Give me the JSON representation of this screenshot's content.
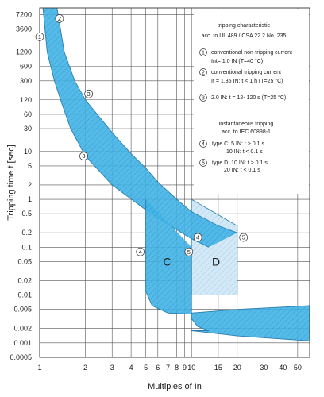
{
  "chart_data": {
    "type": "area",
    "xlabel": "Multiples of In",
    "ylabel": "Tripping time t [sec]",
    "xscale": "log",
    "yscale": "log",
    "xlim": [
      1,
      60
    ],
    "ylim": [
      0.0005,
      10000
    ],
    "x_ticks": [
      1,
      2,
      3,
      4,
      5,
      6,
      7,
      8,
      9,
      10,
      15,
      20,
      30,
      40,
      50
    ],
    "x_tick_labels": [
      "1",
      "2",
      "3",
      "4",
      "5",
      "6",
      "7",
      "8",
      "9",
      "10",
      "15",
      "20",
      "30",
      "40",
      "50"
    ],
    "y_ticks": [
      7200,
      3600,
      1200,
      600,
      300,
      120,
      60,
      30,
      10,
      5,
      2,
      1,
      0.5,
      0.2,
      0.1,
      0.05,
      0.02,
      0.01,
      0.005,
      0.002,
      0.001,
      0.0005
    ],
    "y_tick_labels": [
      "7200",
      "3600",
      "1200",
      "600",
      "300",
      "120",
      "60",
      "30",
      "10",
      "5",
      "2",
      "1",
      "0.5",
      "0.2",
      "0.1",
      "0.05",
      "0.02",
      "0.01",
      "0.005",
      "0.002",
      "0.001",
      "0.0005"
    ],
    "grid": true,
    "colors": {
      "band": "#41b4e6",
      "band_edge": "#2a7fb0",
      "d_region": "#d4e9f7",
      "grid": "#555555"
    },
    "series": [
      {
        "name": "",
        "style": "band",
        "upper": [
          [
            1.3,
            10000
          ],
          [
            1.45,
            1200
          ],
          [
            1.7,
            300
          ],
          [
            2.0,
            120
          ],
          [
            3.0,
            25
          ],
          [
            4.0,
            9
          ],
          [
            5.0,
            4.5
          ],
          [
            6.0,
            2.3
          ],
          [
            8.0,
            1.0
          ],
          [
            10.0,
            0.55
          ],
          [
            15.0,
            0.28
          ],
          [
            20.0,
            0.2
          ]
        ],
        "lower": [
          [
            1.05,
            10000
          ],
          [
            1.12,
            1200
          ],
          [
            1.25,
            300
          ],
          [
            1.4,
            100
          ],
          [
            1.6,
            30
          ],
          [
            2.0,
            8
          ],
          [
            3.0,
            2.0
          ],
          [
            5.0,
            0.6
          ],
          [
            7.0,
            0.3
          ],
          [
            10.0,
            0.15
          ],
          [
            13.0,
            0.1
          ]
        ]
      },
      {
        "name": "C",
        "style": "band",
        "x_start": 5,
        "x_end": 10,
        "upper_left": [
          [
            5,
            1.0
          ],
          [
            5,
            0.012
          ],
          [
            5.5,
            0.006
          ],
          [
            7,
            0.0042
          ],
          [
            10,
            0.004
          ]
        ],
        "tail_upper": [
          [
            10,
            0.0042
          ],
          [
            20,
            0.005
          ],
          [
            60,
            0.006
          ]
        ],
        "tail_lower": [
          [
            10,
            0.0018
          ],
          [
            20,
            0.0014
          ],
          [
            60,
            0.0011
          ]
        ],
        "lower_left": [
          [
            10,
            0.1
          ],
          [
            10,
            0.0032
          ],
          [
            11,
            0.0022
          ],
          [
            13,
            0.0018
          ]
        ]
      },
      {
        "name": "D",
        "style": "region",
        "x_start": 10,
        "x_end": 20,
        "y_top": 1.0,
        "y_bottom": 0.01
      }
    ],
    "point_labels": [
      {
        "label": "1",
        "x": 1.0,
        "y": 2500
      },
      {
        "label": "2",
        "x": 1.35,
        "y": 6000
      },
      {
        "label": "3",
        "x": 2.1,
        "y": 160
      },
      {
        "label": "3",
        "x": 1.95,
        "y": 8
      },
      {
        "label": "4",
        "x": 4.6,
        "y": 0.08
      },
      {
        "label": "5",
        "x": 9.6,
        "y": 0.08
      },
      {
        "label": "4",
        "x": 11.0,
        "y": 0.16
      },
      {
        "label": "5",
        "x": 22.0,
        "y": 0.16
      }
    ],
    "region_labels": [
      {
        "label": "C",
        "x": 6.9,
        "y": 0.05
      },
      {
        "label": "D",
        "x": 14.5,
        "y": 0.05
      }
    ],
    "annotations": {
      "head1_line1": "tripping characteristic",
      "head1_line2": "acc.  to UL  489 / CSA 22.2 No. 235",
      "item1_num": "1",
      "item1_line1": "conventional non-tripping current",
      "item1_line2": "Int= 1.0  IN  (T=40 °C)",
      "item2_num": "2",
      "item2_line1": "conventional tripping current",
      "item2_line2": "It = 1.35  IN: t < 1 h (T=25 °C)",
      "item3_num": "3",
      "item3_line1": "2.0  IN:  t = 12-  120  s  (T=25 °C)",
      "head2_line1": "instantaneous  tripping",
      "head2_line2": "acc.  to IEC  60898-1",
      "item4_num": "4",
      "item4_line1": "type  C:  5 IN: t > 0.1  s",
      "item4_line2": "10 IN: t < 0.1  s",
      "item6_num": "6",
      "item6_line1": "type  D:  10 IN: t > 0.1  s",
      "item6_line2": "20 IN: t < 0.1  s"
    }
  }
}
